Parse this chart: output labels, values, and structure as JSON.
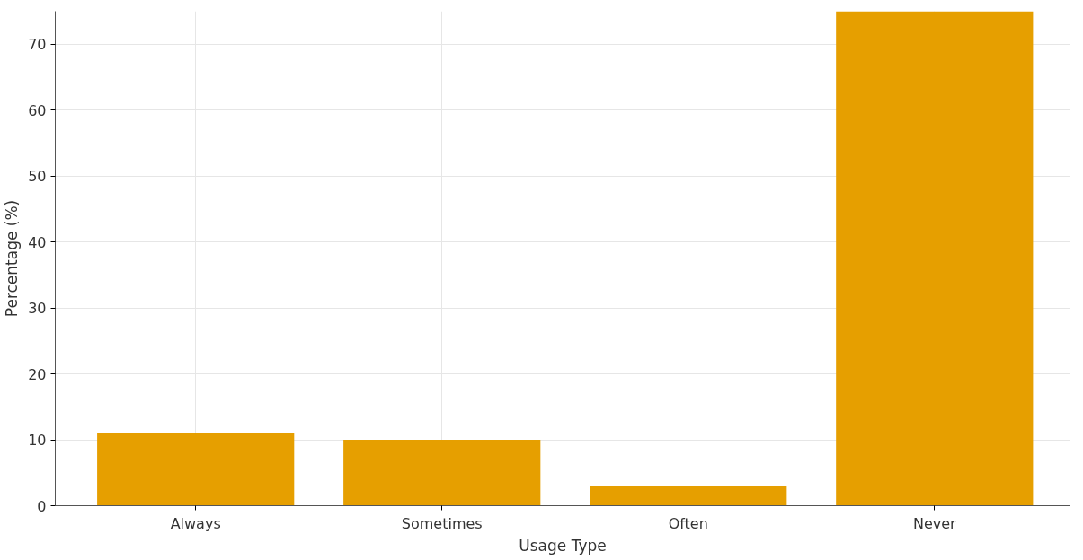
{
  "chart_data": {
    "type": "bar",
    "xlabel": "Usage Type",
    "ylabel": "Percentage (%)",
    "categories": [
      "Always",
      "Sometimes",
      "Often",
      "Never"
    ],
    "values": [
      11,
      10,
      3,
      75
    ],
    "color": "#e69f00",
    "ylim": [
      0,
      75
    ],
    "yticks": [
      0,
      10,
      20,
      30,
      40,
      50,
      60,
      70
    ],
    "grid": true
  }
}
